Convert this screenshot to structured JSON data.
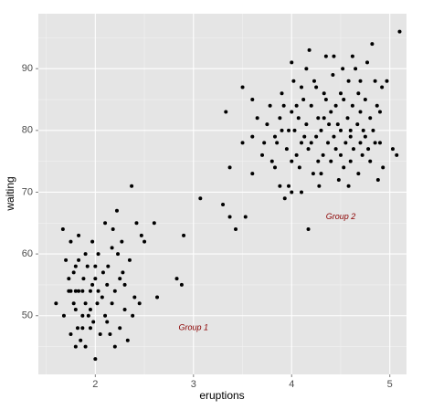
{
  "chart_data": {
    "type": "scatter",
    "x_label": "eruptions",
    "y_label": "waiting",
    "color": "#000000",
    "grid": true,
    "xlim": [
      1.42,
      5.17
    ],
    "ylim": [
      40.5,
      98.9
    ],
    "xticks": [
      2,
      3,
      4,
      5
    ],
    "yticks": [
      50,
      60,
      70,
      80,
      90
    ],
    "annotations": [
      {
        "text": "Group 1",
        "x": 3.0,
        "y": 48
      },
      {
        "text": "Group 2",
        "x": 4.5,
        "y": 66
      }
    ],
    "x": [
      1.6,
      1.67,
      1.7,
      1.73,
      1.75,
      1.75,
      1.75,
      1.78,
      1.8,
      1.8,
      1.8,
      1.8,
      1.82,
      1.83,
      1.83,
      1.83,
      1.85,
      1.87,
      1.87,
      1.87,
      1.88,
      1.9,
      1.9,
      1.9,
      1.92,
      1.93,
      1.95,
      1.95,
      1.97,
      1.97,
      1.98,
      2.0,
      2.0,
      2.0,
      2.02,
      2.03,
      2.05,
      2.07,
      2.08,
      2.1,
      2.1,
      2.12,
      2.13,
      2.15,
      2.17,
      2.17,
      2.2,
      2.2,
      2.22,
      2.23,
      2.25,
      2.25,
      2.27,
      2.3,
      2.3,
      2.33,
      2.35,
      2.37,
      2.38,
      2.4,
      2.42,
      2.45,
      2.47,
      2.5,
      2.6,
      2.63,
      2.83,
      2.88,
      2.9,
      3.07,
      1.73,
      1.95,
      2.03,
      2.12,
      1.78,
      2.28,
      2.18,
      1.68,
      3.33,
      3.37,
      3.37,
      3.43,
      3.5,
      3.5,
      3.53,
      3.6,
      3.6,
      3.6,
      3.65,
      3.7,
      3.72,
      3.75,
      3.78,
      3.8,
      3.83,
      3.83,
      3.85,
      3.88,
      3.88,
      3.9,
      3.92,
      3.93,
      3.95,
      3.97,
      4.0,
      4.0,
      4.0,
      4.02,
      4.03,
      4.05,
      4.07,
      4.08,
      4.1,
      4.1,
      4.12,
      4.13,
      4.15,
      4.17,
      4.17,
      4.18,
      4.2,
      4.2,
      4.22,
      4.23,
      4.25,
      4.25,
      4.27,
      4.28,
      4.3,
      4.3,
      4.32,
      4.33,
      4.35,
      4.35,
      4.37,
      4.38,
      4.4,
      4.4,
      4.42,
      4.43,
      4.45,
      4.45,
      4.47,
      4.48,
      4.5,
      4.5,
      4.5,
      4.52,
      4.53,
      4.53,
      4.55,
      4.57,
      4.58,
      4.6,
      4.6,
      4.62,
      4.63,
      4.65,
      4.67,
      4.68,
      4.7,
      4.7,
      4.7,
      4.72,
      4.73,
      4.75,
      4.77,
      4.78,
      4.8,
      4.8,
      4.82,
      4.83,
      4.85,
      4.87,
      4.88,
      4.9,
      4.92,
      4.93,
      4.97,
      5.03,
      5.07,
      5.1,
      4.0,
      3.97,
      4.27,
      4.58,
      4.15,
      4.43,
      4.1,
      4.68,
      4.9,
      4.6,
      4.75,
      4.33,
      3.9,
      4.05,
      4.62,
      4.85,
      3.3
    ],
    "values": [
      52,
      64,
      59,
      56,
      47,
      54,
      62,
      57,
      51,
      54,
      58,
      45,
      48,
      54,
      59,
      63,
      46,
      48,
      50,
      54,
      56,
      45,
      52,
      60,
      58,
      50,
      51,
      54,
      55,
      62,
      49,
      43,
      56,
      58,
      52,
      60,
      47,
      53,
      57,
      50,
      65,
      55,
      58,
      47,
      52,
      61,
      45,
      54,
      67,
      60,
      48,
      56,
      62,
      51,
      55,
      46,
      59,
      71,
      50,
      53,
      65,
      52,
      63,
      62,
      65,
      53,
      56,
      55,
      63,
      69,
      54,
      48,
      54,
      49,
      52,
      57,
      64,
      50,
      83,
      74,
      66,
      64,
      78,
      87,
      66,
      73,
      79,
      85,
      82,
      76,
      78,
      81,
      84,
      75,
      74,
      79,
      78,
      71,
      82,
      86,
      84,
      69,
      77,
      80,
      70,
      75,
      83,
      88,
      80,
      76,
      82,
      74,
      70,
      78,
      85,
      79,
      81,
      64,
      77,
      93,
      78,
      84,
      73,
      88,
      79,
      87,
      82,
      71,
      73,
      80,
      76,
      86,
      85,
      92,
      78,
      81,
      75,
      83,
      89,
      79,
      77,
      84,
      81,
      72,
      76,
      80,
      86,
      90,
      74,
      85,
      78,
      82,
      88,
      75,
      80,
      84,
      77,
      90,
      81,
      73,
      78,
      83,
      88,
      76,
      80,
      85,
      91,
      77,
      75,
      82,
      94,
      80,
      78,
      84,
      72,
      83,
      87,
      74,
      88,
      77,
      76,
      96,
      91,
      71,
      75,
      71,
      90,
      92,
      87,
      86,
      78,
      79,
      79,
      82,
      80,
      84,
      92,
      88,
      68
    ]
  }
}
